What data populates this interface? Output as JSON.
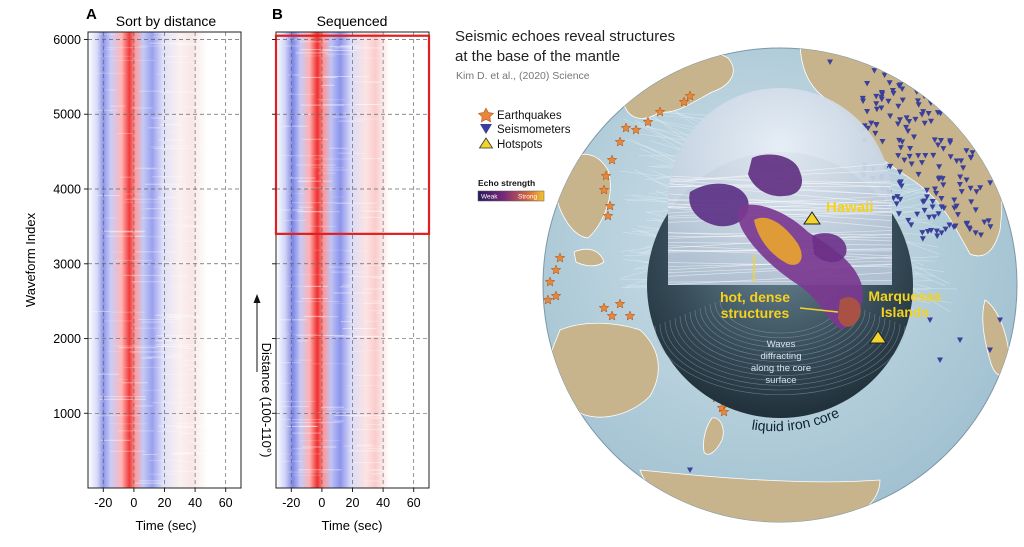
{
  "panel_a": {
    "letter": "A",
    "title": "Sort by distance"
  },
  "panel_b": {
    "letter": "B",
    "title": "Sequenced"
  },
  "y_axis_label": "Waveform Index",
  "x_axis_label": "Time (sec)",
  "distance_label": "Distance (100-110°)",
  "map": {
    "title_line1": "Seismic echoes reveal structures",
    "title_line2": "at the base of the mantle",
    "citation": "Kim D. et al., (2020) Science",
    "legend": {
      "earthquakes": "Earthquakes",
      "seismometers": "Seismometers",
      "hotspots": "Hotspots"
    },
    "colorbar": {
      "title": "Echo strength",
      "weak": "Weak",
      "strong": "Strong"
    },
    "labels": {
      "hawaii": "Hawaii",
      "marquesas_1": "Marquesas",
      "marquesas_2": "Islands",
      "hot_1": "hot, dense",
      "hot_2": "structures",
      "waves_1": "Waves",
      "waves_2": "diffracting",
      "waves_3": "along the core",
      "waves_4": "surface",
      "core": "liquid iron core"
    },
    "colors": {
      "ocean": "#b9d3df",
      "land": "#c8b48c",
      "earthquake": "#e8863a",
      "seismometer": "#3a3f9a",
      "hotspot": "#f2d42a"
    }
  },
  "chart_data": [
    {
      "type": "heatmap",
      "title": "Sort by distance",
      "xlabel": "Time (sec)",
      "ylabel": "Waveform Index",
      "xlim": [
        -30,
        70
      ],
      "ylim": [
        1,
        6100
      ],
      "xticks": [
        -20,
        0,
        20,
        40,
        60
      ],
      "yticks": [
        1000,
        2000,
        3000,
        4000,
        5000,
        6000
      ],
      "grid": true,
      "bands": [
        {
          "time": -15,
          "sign": "negative",
          "strength": 0.5
        },
        {
          "time": 0,
          "sign": "positive",
          "strength": 1.0
        },
        {
          "time": 15,
          "sign": "negative",
          "strength": 0.55
        },
        {
          "time": 35,
          "sign": "positive",
          "strength": 0.1
        }
      ]
    },
    {
      "type": "heatmap",
      "title": "Sequenced",
      "xlabel": "Time (sec)",
      "xlim": [
        -30,
        70
      ],
      "ylim": [
        1,
        6100
      ],
      "xticks": [
        -20,
        0,
        20,
        40,
        60
      ],
      "yticks": [
        1000,
        2000,
        3000,
        4000,
        5000,
        6000
      ],
      "grid": true,
      "highlight_box": {
        "y_range": [
          3400,
          6050
        ],
        "x_range": [
          -30,
          70
        ],
        "color": "#e02020"
      },
      "bands": [
        {
          "time": -15,
          "sign": "negative",
          "strength": 0.55
        },
        {
          "time": 0,
          "sign": "positive",
          "strength": 1.0
        },
        {
          "time": 15,
          "sign": "negative",
          "strength": 0.6
        },
        {
          "time": 35,
          "sign": "positive",
          "strength": 0.25
        }
      ]
    }
  ]
}
